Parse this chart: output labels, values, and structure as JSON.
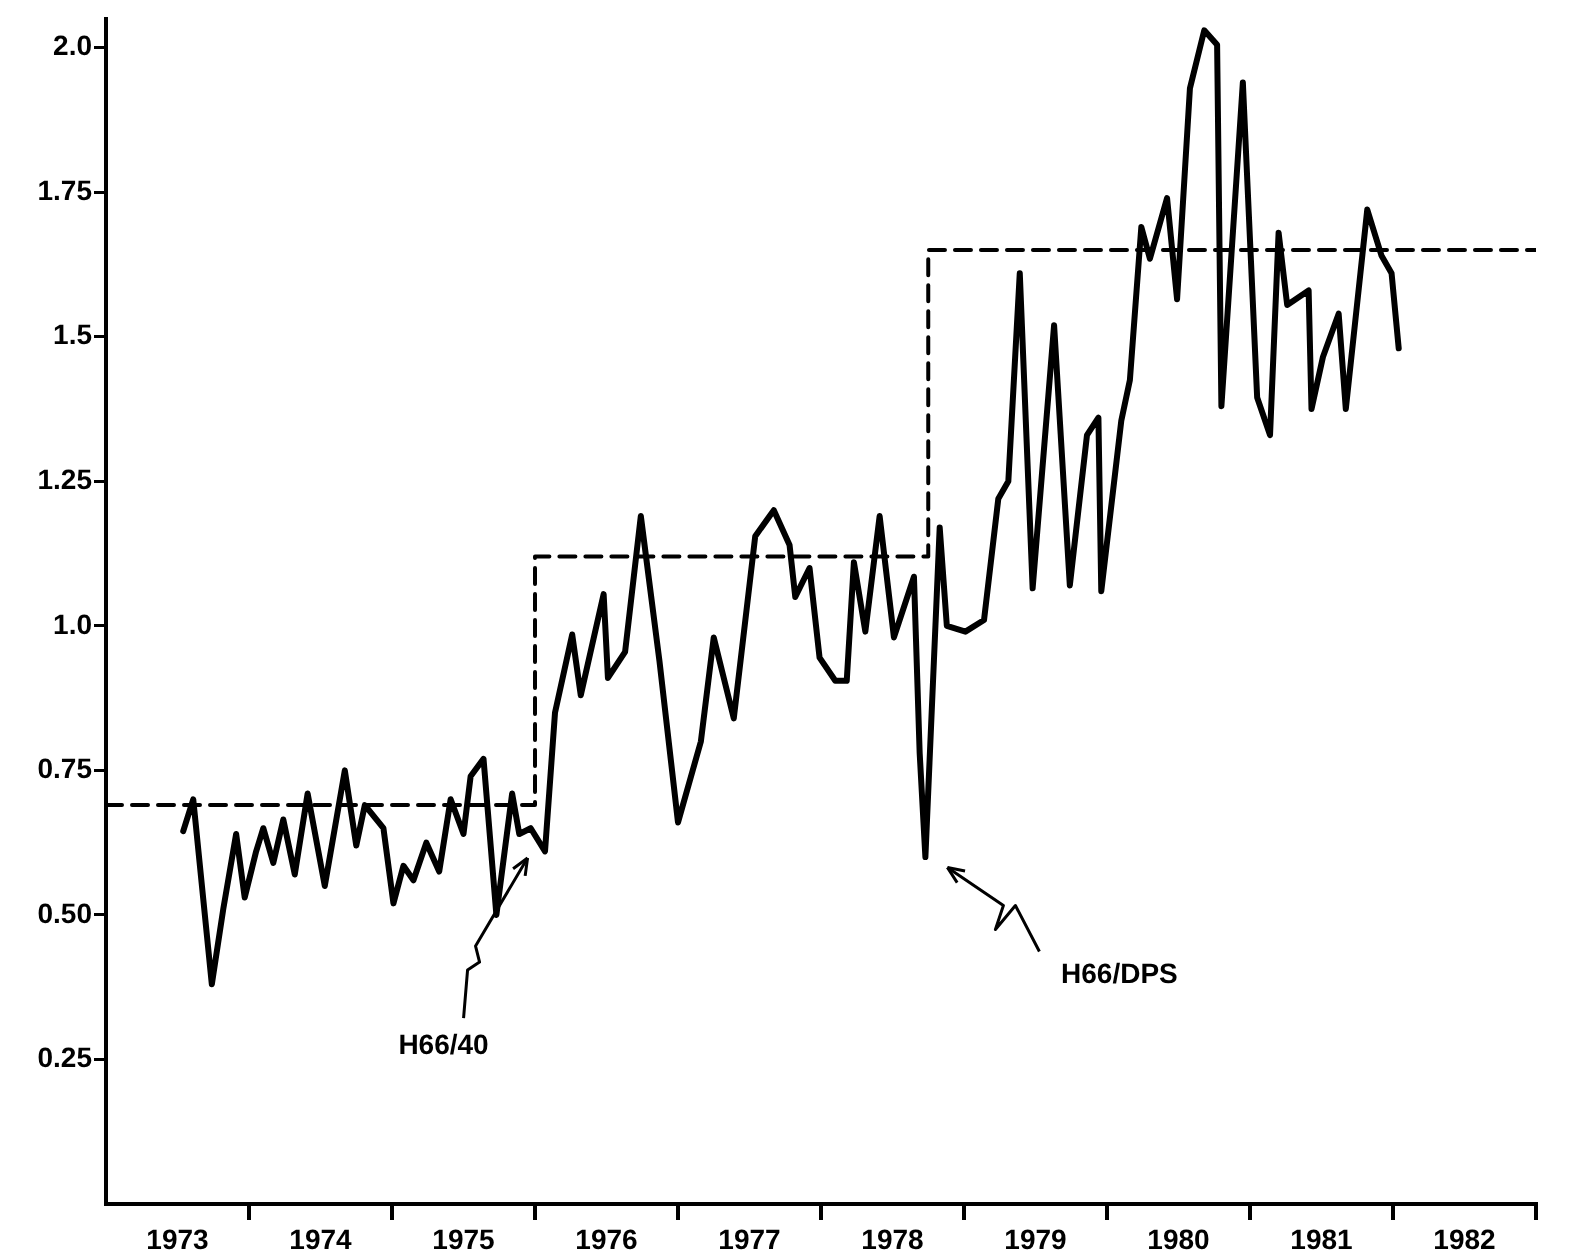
{
  "chart_data": {
    "type": "line",
    "marker": "none",
    "grid": false,
    "legend": false,
    "xlim": [
      1973,
      1983
    ],
    "xticks": [
      {
        "value": 1973.5,
        "label": "1973"
      },
      {
        "value": 1974,
        "label": null
      },
      {
        "value": 1974.5,
        "label": "1974"
      },
      {
        "value": 1975,
        "label": null
      },
      {
        "value": 1975.5,
        "label": "1975"
      },
      {
        "value": 1976,
        "label": null
      },
      {
        "value": 1976.5,
        "label": "1976"
      },
      {
        "value": 1977,
        "label": null
      },
      {
        "value": 1977.5,
        "label": "1977"
      },
      {
        "value": 1978,
        "label": null
      },
      {
        "value": 1978.5,
        "label": "1978"
      },
      {
        "value": 1979,
        "label": null
      },
      {
        "value": 1979.5,
        "label": "1979"
      },
      {
        "value": 1980,
        "label": null
      },
      {
        "value": 1980.5,
        "label": "1980"
      },
      {
        "value": 1981,
        "label": null
      },
      {
        "value": 1981.5,
        "label": "1981"
      },
      {
        "value": 1982,
        "label": null
      },
      {
        "value": 1982.5,
        "label": "1982"
      },
      {
        "value": 1983,
        "label": null
      }
    ],
    "ylim": [
      0,
      2.05
    ],
    "yticks": [
      {
        "value": 0.25,
        "label": "0.25"
      },
      {
        "value": 0.5,
        "label": "0.50"
      },
      {
        "value": 0.75,
        "label": "0.75"
      },
      {
        "value": 1,
        "label": "1.0"
      },
      {
        "value": 1.25,
        "label": "1.25"
      },
      {
        "value": 1.5,
        "label": "1.5"
      },
      {
        "value": 1.75,
        "label": "1.75"
      },
      {
        "value": 2,
        "label": "2.0"
      }
    ],
    "series": [
      {
        "color": "#000000",
        "line_style": "solid",
        "x": [
          1973.54,
          1973.61,
          1973.74,
          1973.82,
          1973.91,
          1973.97,
          1974.05,
          1974.1,
          1974.17,
          1974.24,
          1974.32,
          1974.41,
          1974.53,
          1974.67,
          1974.75,
          1974.81,
          1974.94,
          1975.01,
          1975.08,
          1975.15,
          1975.24,
          1975.33,
          1975.41,
          1975.5,
          1975.55,
          1975.64,
          1975.73,
          1975.84,
          1975.89,
          1975.97,
          1976.07,
          1976.14,
          1976.26,
          1976.32,
          1976.48,
          1976.51,
          1976.63,
          1976.74,
          1976.87,
          1977.0,
          1977.16,
          1977.25,
          1977.39,
          1977.54,
          1977.67,
          1977.78,
          1977.82,
          1977.92,
          1977.99,
          1978.1,
          1978.18,
          1978.23,
          1978.31,
          1978.41,
          1978.51,
          1978.65,
          1978.69,
          1978.73,
          1978.83,
          1978.88,
          1979.01,
          1979.14,
          1979.24,
          1979.31,
          1979.39,
          1979.48,
          1979.63,
          1979.74,
          1979.86,
          1979.94,
          1979.96,
          1980.1,
          1980.16,
          1980.24,
          1980.3,
          1980.42,
          1980.49,
          1980.58,
          1980.68,
          1980.77,
          1980.8,
          1980.95,
          1981.05,
          1981.14,
          1981.2,
          1981.26,
          1981.41,
          1981.43,
          1981.51,
          1981.62,
          1981.67,
          1981.82,
          1981.92,
          1981.99,
          1982.04
        ],
        "values": [
          0.645,
          0.7,
          0.38,
          0.51,
          0.64,
          0.53,
          0.61,
          0.65,
          0.59,
          0.665,
          0.57,
          0.71,
          0.55,
          0.75,
          0.62,
          0.69,
          0.65,
          0.52,
          0.585,
          0.56,
          0.625,
          0.575,
          0.7,
          0.64,
          0.74,
          0.77,
          0.5,
          0.71,
          0.64,
          0.65,
          0.61,
          0.85,
          0.985,
          0.88,
          1.055,
          0.91,
          0.955,
          1.19,
          0.94,
          0.66,
          0.8,
          0.98,
          0.84,
          1.155,
          1.2,
          1.14,
          1.05,
          1.1,
          0.945,
          0.905,
          0.905,
          1.11,
          0.99,
          1.19,
          0.98,
          1.085,
          0.78,
          0.6,
          1.17,
          1.0,
          0.99,
          1.01,
          1.22,
          1.25,
          1.61,
          1.065,
          1.52,
          1.07,
          1.33,
          1.36,
          1.06,
          1.355,
          1.425,
          1.69,
          1.635,
          1.74,
          1.565,
          1.93,
          2.03,
          2.005,
          1.38,
          1.94,
          1.395,
          1.33,
          1.68,
          1.555,
          1.58,
          1.375,
          1.465,
          1.54,
          1.375,
          1.72,
          1.64,
          1.61,
          1.48
        ]
      },
      {
        "type": "step",
        "color": "#000000",
        "line_style": "dashed",
        "x": [
          1973,
          1976,
          1978.75,
          1983
        ],
        "values": [
          0.69,
          1.12,
          1.65,
          1.65
        ]
      }
    ],
    "annotations": [
      "H66/40",
      "H66/DPS"
    ]
  }
}
